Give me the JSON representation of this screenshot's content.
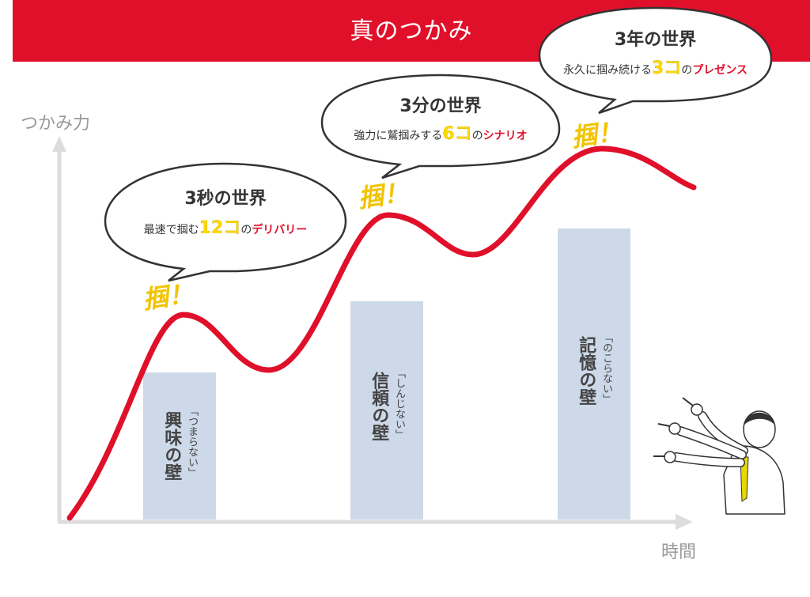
{
  "header": {
    "title": "真のつかみ"
  },
  "axes": {
    "y_label": "つかみ力",
    "x_label": "時間"
  },
  "walls": [
    {
      "name": "興味の壁",
      "reading": "「つまらない」"
    },
    {
      "name": "信頼の壁",
      "reading": "「しんじない」"
    },
    {
      "name": "記憶の壁",
      "reading": "「のこらない」"
    }
  ],
  "bubbles": [
    {
      "title": "3秒の世界",
      "pre": "最速で掴む",
      "num": "12",
      "unit": "コ",
      "mid": "の",
      "emph": "デリバリー"
    },
    {
      "title": "3分の世界",
      "pre": "強力に鷲掴みする",
      "num": "6",
      "unit": "コ",
      "mid": "の",
      "emph": "シナリオ"
    },
    {
      "title": "3年の世界",
      "pre": "永久に掴み続ける",
      "num": "3",
      "unit": "コ",
      "mid": "の",
      "emph": "プレゼンス"
    }
  ],
  "grab_marks": [
    "掴！",
    "掴！",
    "掴！"
  ],
  "colors": {
    "accent": "#e0102a",
    "wall": "#cdd9e9",
    "grab": "#f2c400",
    "axis": "#dddddd"
  }
}
